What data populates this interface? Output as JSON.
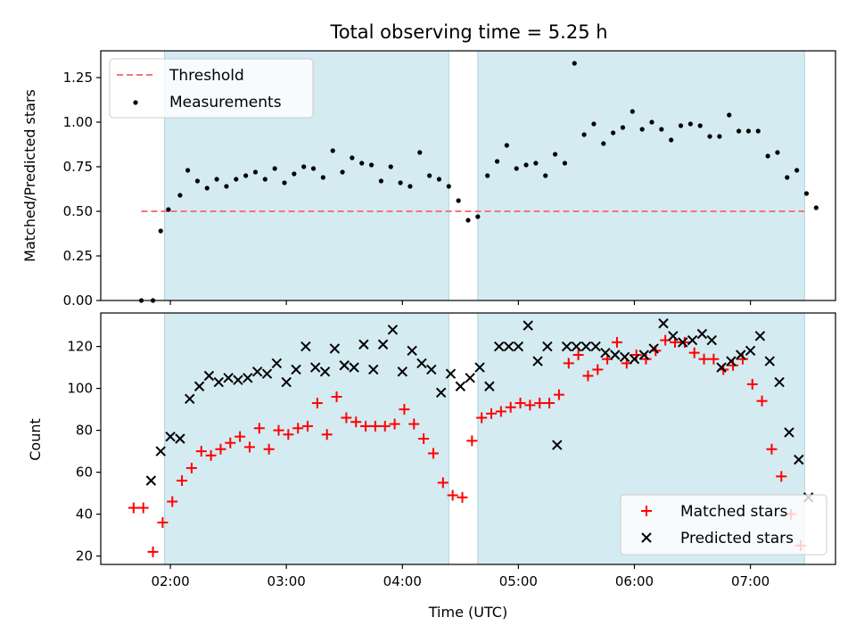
{
  "chart_data": [
    {
      "type": "scatter",
      "title": "Total observing time = 5.25 h",
      "xlabel": "",
      "ylabel": "Matched/Predicted stars",
      "ylim": [
        0,
        1.4
      ],
      "yticks": [
        "0.00",
        "0.25",
        "0.50",
        "0.75",
        "1.00",
        "1.25"
      ],
      "xticks": [],
      "shaded_intervals": [
        [
          "01:57",
          "04:24"
        ],
        [
          "04:39",
          "07:28"
        ]
      ],
      "shade_color": "#d4ebf2",
      "threshold": {
        "name": "Threshold",
        "value": 0.5,
        "x_start": "01:45",
        "x_end": "07:28",
        "color": "#f07878",
        "style": "dashed"
      },
      "series": [
        {
          "name": "Measurements",
          "color": "#000000",
          "marker": "dot",
          "points": [
            [
              "01:45",
              0.0
            ],
            [
              "01:51",
              0.0
            ],
            [
              "01:55",
              0.39
            ],
            [
              "01:59",
              0.51
            ],
            [
              "02:05",
              0.59
            ],
            [
              "02:09",
              0.73
            ],
            [
              "02:14",
              0.67
            ],
            [
              "02:19",
              0.63
            ],
            [
              "02:24",
              0.68
            ],
            [
              "02:29",
              0.64
            ],
            [
              "02:34",
              0.68
            ],
            [
              "02:39",
              0.7
            ],
            [
              "02:44",
              0.72
            ],
            [
              "02:49",
              0.68
            ],
            [
              "02:54",
              0.74
            ],
            [
              "02:59",
              0.66
            ],
            [
              "03:04",
              0.71
            ],
            [
              "03:09",
              0.75
            ],
            [
              "03:14",
              0.74
            ],
            [
              "03:19",
              0.69
            ],
            [
              "03:24",
              0.84
            ],
            [
              "03:29",
              0.72
            ],
            [
              "03:34",
              0.8
            ],
            [
              "03:39",
              0.77
            ],
            [
              "03:44",
              0.76
            ],
            [
              "03:49",
              0.67
            ],
            [
              "03:54",
              0.75
            ],
            [
              "03:59",
              0.66
            ],
            [
              "04:04",
              0.64
            ],
            [
              "04:09",
              0.83
            ],
            [
              "04:14",
              0.7
            ],
            [
              "04:19",
              0.68
            ],
            [
              "04:24",
              0.64
            ],
            [
              "04:29",
              0.56
            ],
            [
              "04:34",
              0.45
            ],
            [
              "04:39",
              0.47
            ],
            [
              "04:44",
              0.7
            ],
            [
              "04:49",
              0.78
            ],
            [
              "04:54",
              0.87
            ],
            [
              "04:59",
              0.74
            ],
            [
              "05:04",
              0.76
            ],
            [
              "05:09",
              0.77
            ],
            [
              "05:14",
              0.7
            ],
            [
              "05:19",
              0.82
            ],
            [
              "05:24",
              0.77
            ],
            [
              "05:29",
              1.33
            ],
            [
              "05:34",
              0.93
            ],
            [
              "05:39",
              0.99
            ],
            [
              "05:44",
              0.88
            ],
            [
              "05:49",
              0.94
            ],
            [
              "05:54",
              0.97
            ],
            [
              "05:59",
              1.06
            ],
            [
              "06:04",
              0.96
            ],
            [
              "06:09",
              1.0
            ],
            [
              "06:14",
              0.96
            ],
            [
              "06:19",
              0.9
            ],
            [
              "06:24",
              0.98
            ],
            [
              "06:29",
              0.99
            ],
            [
              "06:34",
              0.98
            ],
            [
              "06:39",
              0.92
            ],
            [
              "06:44",
              0.92
            ],
            [
              "06:49",
              1.04
            ],
            [
              "06:54",
              0.95
            ],
            [
              "06:59",
              0.95
            ],
            [
              "07:04",
              0.95
            ],
            [
              "07:09",
              0.81
            ],
            [
              "07:14",
              0.83
            ],
            [
              "07:19",
              0.69
            ],
            [
              "07:24",
              0.73
            ],
            [
              "07:29",
              0.6
            ],
            [
              "07:34",
              0.52
            ]
          ]
        }
      ],
      "legend": {
        "position": "top-left"
      }
    },
    {
      "type": "scatter",
      "title": "",
      "xlabel": "Time (UTC)",
      "ylabel": "Count",
      "ylim": [
        16,
        136
      ],
      "yticks": [
        "20",
        "40",
        "60",
        "80",
        "100",
        "120"
      ],
      "xticks": [
        "02:00",
        "03:00",
        "04:00",
        "05:00",
        "06:00",
        "07:00"
      ],
      "shaded_intervals": [
        [
          "01:57",
          "04:24"
        ],
        [
          "04:39",
          "07:28"
        ]
      ],
      "shade_color": "#d4ebf2",
      "series": [
        {
          "name": "Matched stars",
          "color": "#ff0000",
          "marker": "plus",
          "points": [
            [
              "01:41",
              43
            ],
            [
              "01:46",
              43
            ],
            [
              "01:51",
              22
            ],
            [
              "01:56",
              36
            ],
            [
              "02:01",
              46
            ],
            [
              "02:06",
              56
            ],
            [
              "02:11",
              62
            ],
            [
              "02:16",
              70
            ],
            [
              "02:21",
              68
            ],
            [
              "02:26",
              71
            ],
            [
              "02:31",
              74
            ],
            [
              "02:36",
              77
            ],
            [
              "02:41",
              72
            ],
            [
              "02:46",
              81
            ],
            [
              "02:51",
              71
            ],
            [
              "02:56",
              80
            ],
            [
              "03:01",
              78
            ],
            [
              "03:06",
              81
            ],
            [
              "03:11",
              82
            ],
            [
              "03:16",
              93
            ],
            [
              "03:21",
              78
            ],
            [
              "03:26",
              96
            ],
            [
              "03:31",
              86
            ],
            [
              "03:36",
              84
            ],
            [
              "03:41",
              82
            ],
            [
              "03:46",
              82
            ],
            [
              "03:51",
              82
            ],
            [
              "03:56",
              83
            ],
            [
              "04:01",
              90
            ],
            [
              "04:06",
              83
            ],
            [
              "04:11",
              76
            ],
            [
              "04:16",
              69
            ],
            [
              "04:21",
              55
            ],
            [
              "04:26",
              49
            ],
            [
              "04:31",
              48
            ],
            [
              "04:36",
              75
            ],
            [
              "04:41",
              86
            ],
            [
              "04:46",
              88
            ],
            [
              "04:51",
              89
            ],
            [
              "04:56",
              91
            ],
            [
              "05:01",
              93
            ],
            [
              "05:06",
              92
            ],
            [
              "05:11",
              93
            ],
            [
              "05:16",
              93
            ],
            [
              "05:21",
              97
            ],
            [
              "05:26",
              112
            ],
            [
              "05:31",
              116
            ],
            [
              "05:36",
              106
            ],
            [
              "05:41",
              109
            ],
            [
              "05:46",
              114
            ],
            [
              "05:51",
              122
            ],
            [
              "05:56",
              112
            ],
            [
              "06:01",
              116
            ],
            [
              "06:06",
              114
            ],
            [
              "06:11",
              118
            ],
            [
              "06:16",
              123
            ],
            [
              "06:21",
              122
            ],
            [
              "06:26",
              122
            ],
            [
              "06:31",
              117
            ],
            [
              "06:36",
              114
            ],
            [
              "06:41",
              114
            ],
            [
              "06:46",
              109
            ],
            [
              "06:51",
              111
            ],
            [
              "06:56",
              114
            ],
            [
              "07:01",
              102
            ],
            [
              "07:06",
              94
            ],
            [
              "07:11",
              71
            ],
            [
              "07:16",
              58
            ],
            [
              "07:21",
              40
            ],
            [
              "07:26",
              25
            ]
          ]
        },
        {
          "name": "Predicted stars",
          "color": "#000000",
          "marker": "x",
          "points": [
            [
              "01:50",
              56
            ],
            [
              "01:55",
              70
            ],
            [
              "02:00",
              77
            ],
            [
              "02:05",
              76
            ],
            [
              "02:10",
              95
            ],
            [
              "02:15",
              101
            ],
            [
              "02:20",
              106
            ],
            [
              "02:25",
              103
            ],
            [
              "02:30",
              105
            ],
            [
              "02:35",
              104
            ],
            [
              "02:40",
              105
            ],
            [
              "02:45",
              108
            ],
            [
              "02:50",
              107
            ],
            [
              "02:55",
              112
            ],
            [
              "03:00",
              103
            ],
            [
              "03:05",
              109
            ],
            [
              "03:10",
              120
            ],
            [
              "03:15",
              110
            ],
            [
              "03:20",
              108
            ],
            [
              "03:25",
              119
            ],
            [
              "03:30",
              111
            ],
            [
              "03:35",
              110
            ],
            [
              "03:40",
              121
            ],
            [
              "03:45",
              109
            ],
            [
              "03:50",
              121
            ],
            [
              "03:55",
              128
            ],
            [
              "04:00",
              108
            ],
            [
              "04:05",
              118
            ],
            [
              "04:10",
              112
            ],
            [
              "04:15",
              109
            ],
            [
              "04:20",
              98
            ],
            [
              "04:25",
              107
            ],
            [
              "04:30",
              101
            ],
            [
              "04:35",
              105
            ],
            [
              "04:40",
              110
            ],
            [
              "04:45",
              101
            ],
            [
              "04:50",
              120
            ],
            [
              "04:55",
              120
            ],
            [
              "05:00",
              120
            ],
            [
              "05:05",
              130
            ],
            [
              "05:10",
              113
            ],
            [
              "05:15",
              120
            ],
            [
              "05:20",
              73
            ],
            [
              "05:25",
              120
            ],
            [
              "05:30",
              120
            ],
            [
              "05:35",
              120
            ],
            [
              "05:40",
              120
            ],
            [
              "05:45",
              117
            ],
            [
              "05:50",
              116
            ],
            [
              "05:55",
              115
            ],
            [
              "06:00",
              114
            ],
            [
              "06:05",
              116
            ],
            [
              "06:10",
              119
            ],
            [
              "06:15",
              131
            ],
            [
              "06:20",
              125
            ],
            [
              "06:25",
              122
            ],
            [
              "06:30",
              123
            ],
            [
              "06:35",
              126
            ],
            [
              "06:40",
              123
            ],
            [
              "06:45",
              110
            ],
            [
              "06:50",
              113
            ],
            [
              "06:55",
              116
            ],
            [
              "07:00",
              118
            ],
            [
              "07:05",
              125
            ],
            [
              "07:10",
              113
            ],
            [
              "07:15",
              103
            ],
            [
              "07:20",
              79
            ],
            [
              "07:25",
              66
            ],
            [
              "07:30",
              48
            ]
          ]
        }
      ],
      "legend": {
        "position": "bottom-right"
      }
    }
  ]
}
